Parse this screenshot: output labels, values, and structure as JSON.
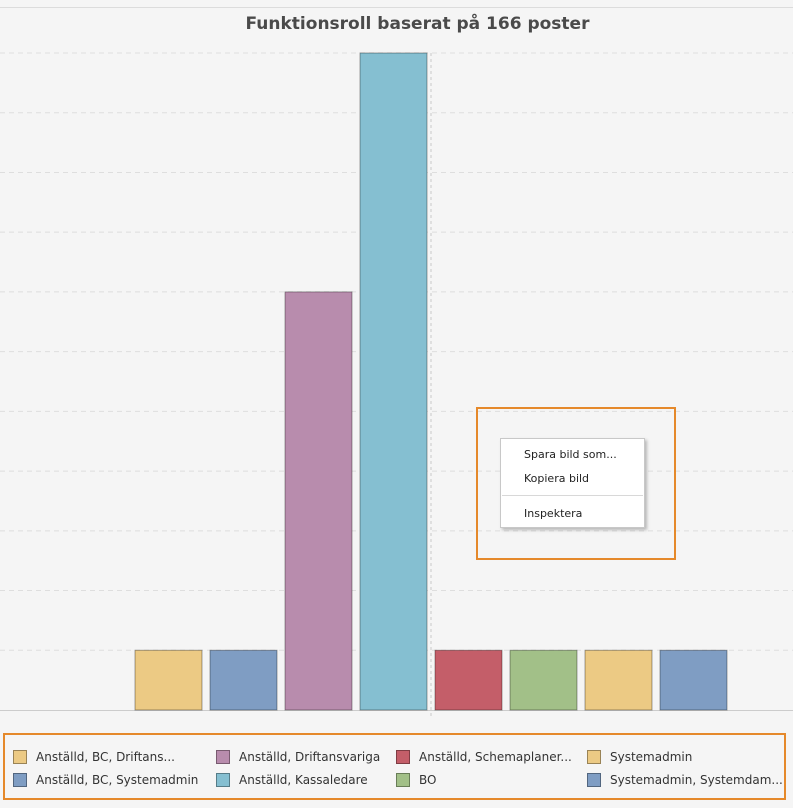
{
  "chart_data": {
    "type": "bar",
    "title": "Funktionsroll baserat på 166 poster",
    "xlabel": "",
    "ylabel": "",
    "categories": [
      "Anställd, BC, Driftans...",
      "Anställd, BC, Systemadmin",
      "Anställd, Driftansvariga",
      "Anställd, Kassaledare",
      "Anställd, Schemaplaner...",
      "BO",
      "Systemadmin",
      "Systemadmin, Systemdam..."
    ],
    "values": [
      1,
      1,
      7,
      11,
      1,
      1,
      1,
      1
    ],
    "colors": [
      "#ecca84",
      "#7f9dc3",
      "#b88cad",
      "#85bfd1",
      "#c45e69",
      "#a2c088",
      "#ecca84",
      "#7f9dc3"
    ],
    "ylim": [
      0,
      11
    ],
    "grid": true,
    "legend_position": "bottom"
  },
  "legend": {
    "items": [
      {
        "label": "Anställd, BC, Driftans...",
        "color": "#ecca84"
      },
      {
        "label": "Anställd, Driftansvariga",
        "color": "#b88cad"
      },
      {
        "label": "Anställd, Schemaplaner...",
        "color": "#c45e69"
      },
      {
        "label": "Systemadmin",
        "color": "#ecca84"
      },
      {
        "label": "Anställd, BC, Systemadmin",
        "color": "#7f9dc3"
      },
      {
        "label": "Anställd, Kassaledare",
        "color": "#85bfd1"
      },
      {
        "label": "BO",
        "color": "#a2c088"
      },
      {
        "label": "Systemadmin, Systemdam...",
        "color": "#7f9dc3"
      }
    ]
  },
  "context_menu": {
    "save_image": "Spara bild som...",
    "copy_image": "Kopiera bild",
    "inspect": "Inspektera"
  },
  "highlight_color": "#e5892b"
}
